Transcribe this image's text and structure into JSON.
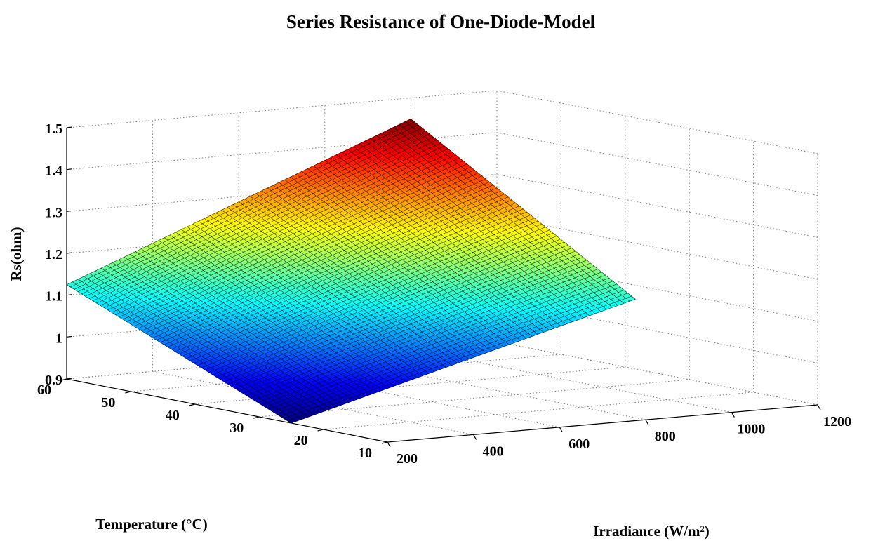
{
  "chart_data": {
    "type": "surface",
    "title": "Series Resistance of One-Diode-Model",
    "xlabel": "Irradiance (W/m²)",
    "ylabel": "Temperature (°C)",
    "zlabel": "Rs(ohm)",
    "x_ticks": [
      "200",
      "400",
      "600",
      "800",
      "1000",
      "1200"
    ],
    "y_ticks": [
      "10",
      "20",
      "30",
      "40",
      "50",
      "60"
    ],
    "z_ticks": [
      "0.9",
      "1",
      "1.1",
      "1.2",
      "1.3",
      "1.4",
      "1.5"
    ],
    "xlim": [
      200,
      1200
    ],
    "ylim": [
      10,
      60
    ],
    "zlim": [
      0.9,
      1.5
    ],
    "grid": true,
    "colormap": "jet",
    "surface_x_range": [
      200,
      1000
    ],
    "surface_y_range": [
      25,
      60
    ],
    "surface_corners": [
      {
        "x": 200,
        "y": 25,
        "z": 0.9
      },
      {
        "x": 1000,
        "y": 25,
        "z": 1.125
      },
      {
        "x": 200,
        "y": 60,
        "z": 1.125
      },
      {
        "x": 1000,
        "y": 60,
        "z": 1.45
      }
    ]
  }
}
